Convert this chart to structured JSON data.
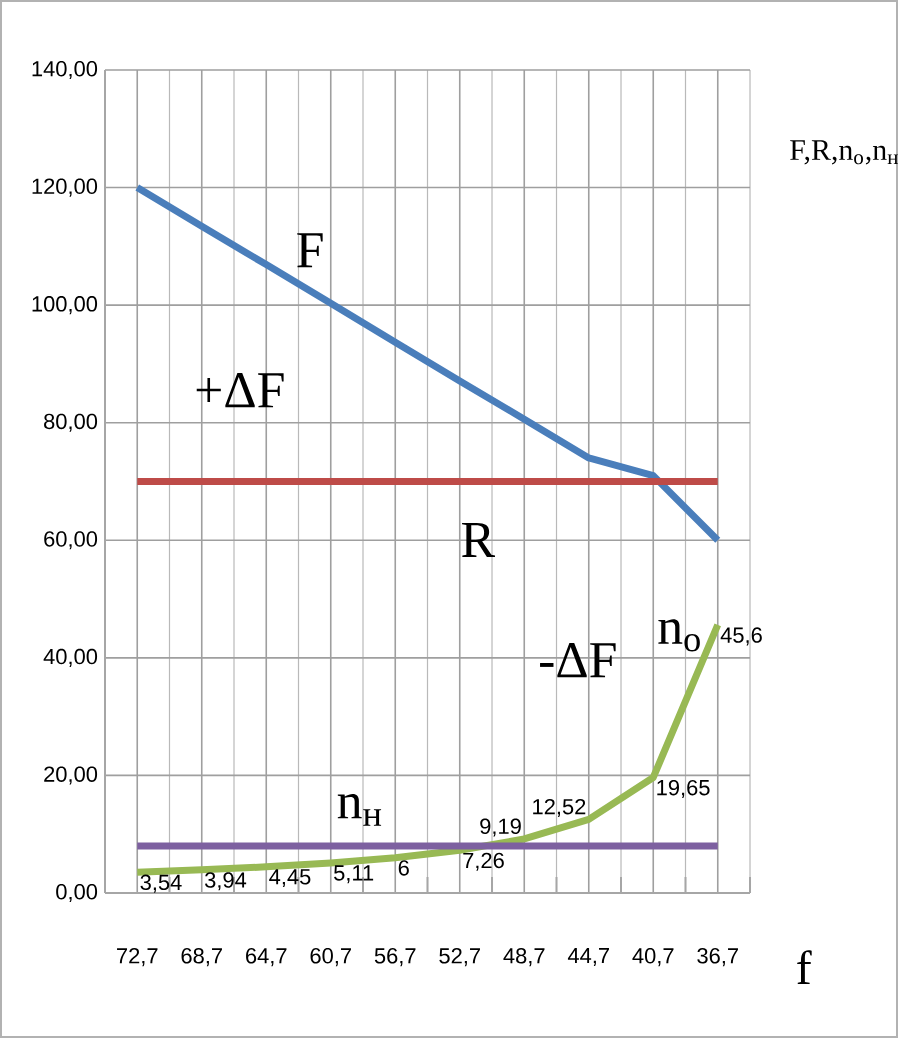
{
  "chart_data": {
    "type": "line",
    "xlabel": "f",
    "ylabel": "F,R,n$_{о}$,n$_{н}$",
    "categories": [
      "72,7",
      "68,7",
      "64,7",
      "60,7",
      "56,7",
      "52,7",
      "48,7",
      "44,7",
      "40,7",
      "36,7"
    ],
    "series": [
      {
        "color": "#4a7ebb",
        "values": [
          120,
          113.4,
          106.9,
          100.3,
          93.7,
          87.1,
          80.6,
          74,
          71,
          60
        ]
      },
      {
        "color": "#be4b48",
        "values": [
          70,
          70,
          70,
          70,
          70,
          70,
          70,
          70,
          70,
          70
        ]
      },
      {
        "color": "#98b954",
        "values": [
          3.54,
          3.94,
          4.45,
          5.11,
          6,
          7.26,
          9.19,
          12.52,
          19.65,
          45.6
        ],
        "value_labels": [
          "3,54",
          "3,94",
          "4,45",
          "5,11",
          "6",
          "7,26",
          "9,19",
          "12,52",
          "19,65",
          "45,6"
        ]
      },
      {
        "color": "#7d60a0",
        "values": [
          8,
          8,
          8,
          8,
          8,
          8,
          8,
          8,
          8,
          8
        ]
      }
    ],
    "ylim": [
      0,
      140
    ],
    "yticks": [
      {
        "value": 0,
        "label": "0,00"
      },
      {
        "value": 20,
        "label": "20,00"
      },
      {
        "value": 40,
        "label": "40,00"
      },
      {
        "value": 60,
        "label": "60,00"
      },
      {
        "value": 80,
        "label": "80,00"
      },
      {
        "value": 100,
        "label": "100,00"
      },
      {
        "value": 120,
        "label": "120,00"
      },
      {
        "value": 140,
        "label": "140,00"
      }
    ],
    "grid": true,
    "annotations": [
      "F",
      "+ΔF",
      "R",
      "-ΔF",
      "n$_{о}$",
      "n$_{н}$"
    ]
  }
}
